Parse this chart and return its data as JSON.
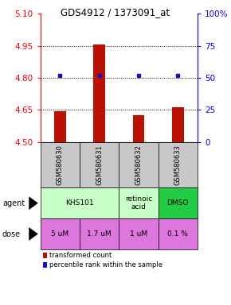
{
  "title": "GDS4912 / 1373091_at",
  "samples": [
    "GSM580630",
    "GSM580631",
    "GSM580632",
    "GSM580633"
  ],
  "bar_values": [
    4.645,
    4.957,
    4.625,
    4.662
  ],
  "bar_base": 4.5,
  "dot_values": [
    4.812,
    4.812,
    4.812,
    4.812
  ],
  "ylim": [
    4.5,
    5.1
  ],
  "yticks_left": [
    4.5,
    4.65,
    4.8,
    4.95,
    5.1
  ],
  "right_tick_positions": [
    4.5,
    4.65,
    4.8,
    4.95,
    5.1
  ],
  "right_tick_labels": [
    "0",
    "25",
    "50",
    "75",
    "100%"
  ],
  "dotted_lines": [
    4.65,
    4.8,
    4.95
  ],
  "bar_color": "#bb1100",
  "dot_color": "#1111cc",
  "agent_defs": [
    {
      "cols": [
        0,
        1
      ],
      "text": "KHS101",
      "color": "#c8ffc8"
    },
    {
      "cols": [
        2
      ],
      "text": "retinoic\nacid",
      "color": "#c8ffc8"
    },
    {
      "cols": [
        3
      ],
      "text": "DMSO",
      "color": "#22cc44"
    }
  ],
  "dose_labels": [
    "5 uM",
    "1.7 uM",
    "1 uM",
    "0.1 %"
  ],
  "dose_color": "#dd77dd",
  "sample_bg_color": "#c8c8c8",
  "legend_bar_color": "#bb1100",
  "legend_dot_color": "#1111cc",
  "bar_width": 0.3
}
